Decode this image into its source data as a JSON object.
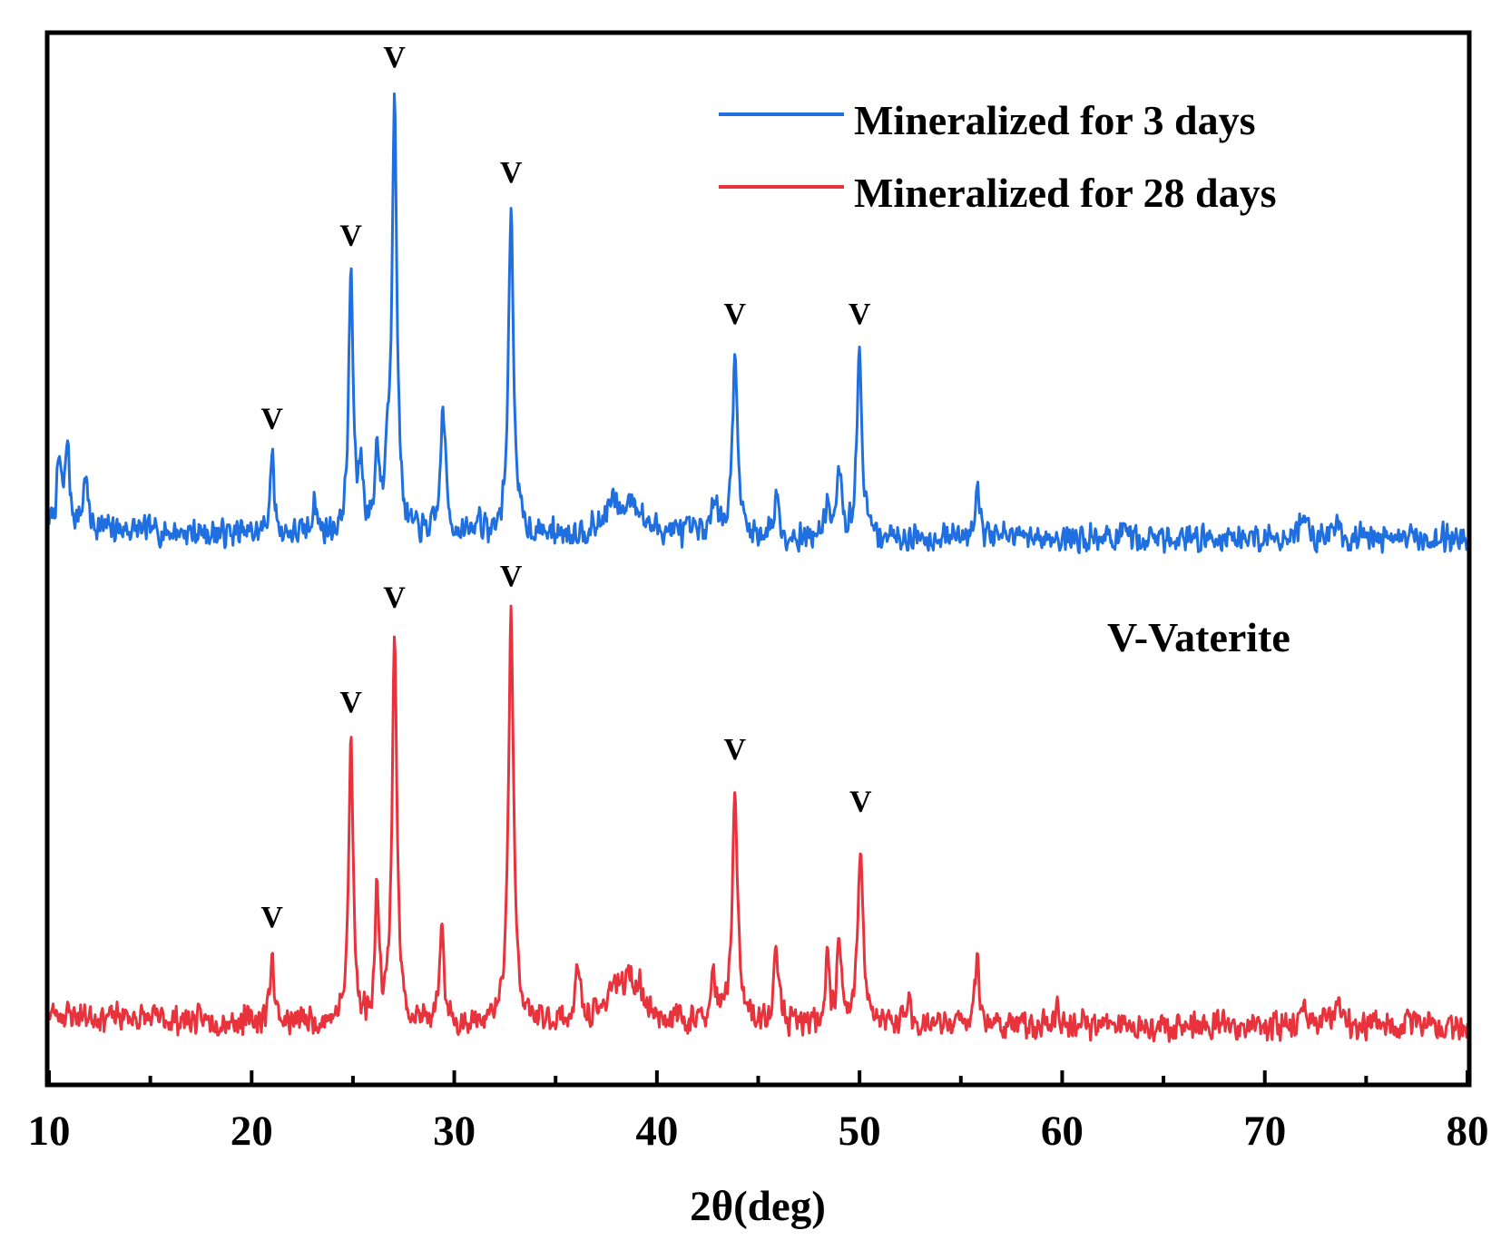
{
  "chart_data": {
    "type": "line",
    "title": "",
    "xlabel": "2θ(deg)",
    "ylabel": "",
    "xlim": [
      10,
      80
    ],
    "ylim": [
      0,
      100
    ],
    "x_ticks": [
      10,
      20,
      30,
      40,
      50,
      60,
      70,
      80
    ],
    "x_tick_labels": [
      "10",
      "20",
      "30",
      "40",
      "50",
      "60",
      "70",
      "80"
    ],
    "x_minor_ticks": [
      15,
      25,
      35,
      45,
      55,
      65,
      75
    ],
    "grid": false,
    "legend_position": "top-right",
    "annotation": "V-Vaterite",
    "marker_label": "V",
    "series": [
      {
        "name": "Mineralized for 3 days",
        "color": "#1f6fe0",
        "baseline": 52,
        "seed": 7,
        "peaks": [
          {
            "x": 10.5,
            "h": 6,
            "w": 0.12
          },
          {
            "x": 10.9,
            "h": 8,
            "w": 0.12
          },
          {
            "x": 11.8,
            "h": 5,
            "w": 0.12
          },
          {
            "x": 21.0,
            "h": 7.5,
            "w": 0.12,
            "marker": true
          },
          {
            "x": 23.1,
            "h": 3.5,
            "w": 0.12
          },
          {
            "x": 24.9,
            "h": 25,
            "w": 0.13,
            "marker": true
          },
          {
            "x": 25.4,
            "h": 6,
            "w": 0.12
          },
          {
            "x": 26.2,
            "h": 8,
            "w": 0.12
          },
          {
            "x": 26.7,
            "h": 6,
            "w": 0.12
          },
          {
            "x": 27.05,
            "h": 42,
            "w": 0.14,
            "marker": true
          },
          {
            "x": 29.45,
            "h": 12,
            "w": 0.15
          },
          {
            "x": 31.2,
            "h": 2,
            "w": 0.12
          },
          {
            "x": 32.8,
            "h": 31,
            "w": 0.15,
            "marker": true
          },
          {
            "x": 37.8,
            "h": 2.5,
            "w": 0.35
          },
          {
            "x": 38.8,
            "h": 3,
            "w": 0.4
          },
          {
            "x": 42.9,
            "h": 4,
            "w": 0.15
          },
          {
            "x": 43.85,
            "h": 17.5,
            "w": 0.15,
            "marker": true
          },
          {
            "x": 45.9,
            "h": 4.5,
            "w": 0.12
          },
          {
            "x": 48.4,
            "h": 3.5,
            "w": 0.12
          },
          {
            "x": 49.0,
            "h": 6.5,
            "w": 0.12
          },
          {
            "x": 50.0,
            "h": 17.5,
            "w": 0.15,
            "marker": true
          },
          {
            "x": 55.8,
            "h": 5,
            "w": 0.15
          },
          {
            "x": 71.9,
            "h": 2.5,
            "w": 0.15
          },
          {
            "x": 73.6,
            "h": 2,
            "w": 0.12
          }
        ]
      },
      {
        "name": "Mineralized for 28 days",
        "color": "#e8323c",
        "baseline": 5.5,
        "seed": 23,
        "peaks": [
          {
            "x": 21.0,
            "h": 6.5,
            "w": 0.12,
            "marker": true
          },
          {
            "x": 24.9,
            "h": 27,
            "w": 0.13,
            "marker": true
          },
          {
            "x": 26.2,
            "h": 12.5,
            "w": 0.12
          },
          {
            "x": 27.05,
            "h": 37,
            "w": 0.14,
            "marker": true
          },
          {
            "x": 29.4,
            "h": 9,
            "w": 0.12
          },
          {
            "x": 32.8,
            "h": 39,
            "w": 0.15,
            "marker": true
          },
          {
            "x": 36.1,
            "h": 5,
            "w": 0.12
          },
          {
            "x": 37.8,
            "h": 3,
            "w": 0.3
          },
          {
            "x": 38.6,
            "h": 3.5,
            "w": 0.35
          },
          {
            "x": 39.2,
            "h": 2,
            "w": 0.3
          },
          {
            "x": 42.8,
            "h": 4,
            "w": 0.15
          },
          {
            "x": 43.85,
            "h": 22.5,
            "w": 0.15,
            "marker": true
          },
          {
            "x": 45.9,
            "h": 7.5,
            "w": 0.13
          },
          {
            "x": 48.4,
            "h": 6.5,
            "w": 0.12
          },
          {
            "x": 49.0,
            "h": 8.5,
            "w": 0.12
          },
          {
            "x": 50.05,
            "h": 17.5,
            "w": 0.15,
            "marker": true
          },
          {
            "x": 52.4,
            "h": 3,
            "w": 0.12
          },
          {
            "x": 55.8,
            "h": 6,
            "w": 0.15
          },
          {
            "x": 59.8,
            "h": 1.5,
            "w": 0.12
          },
          {
            "x": 71.9,
            "h": 2,
            "w": 0.15
          },
          {
            "x": 73.6,
            "h": 2.5,
            "w": 0.15
          }
        ]
      }
    ]
  }
}
